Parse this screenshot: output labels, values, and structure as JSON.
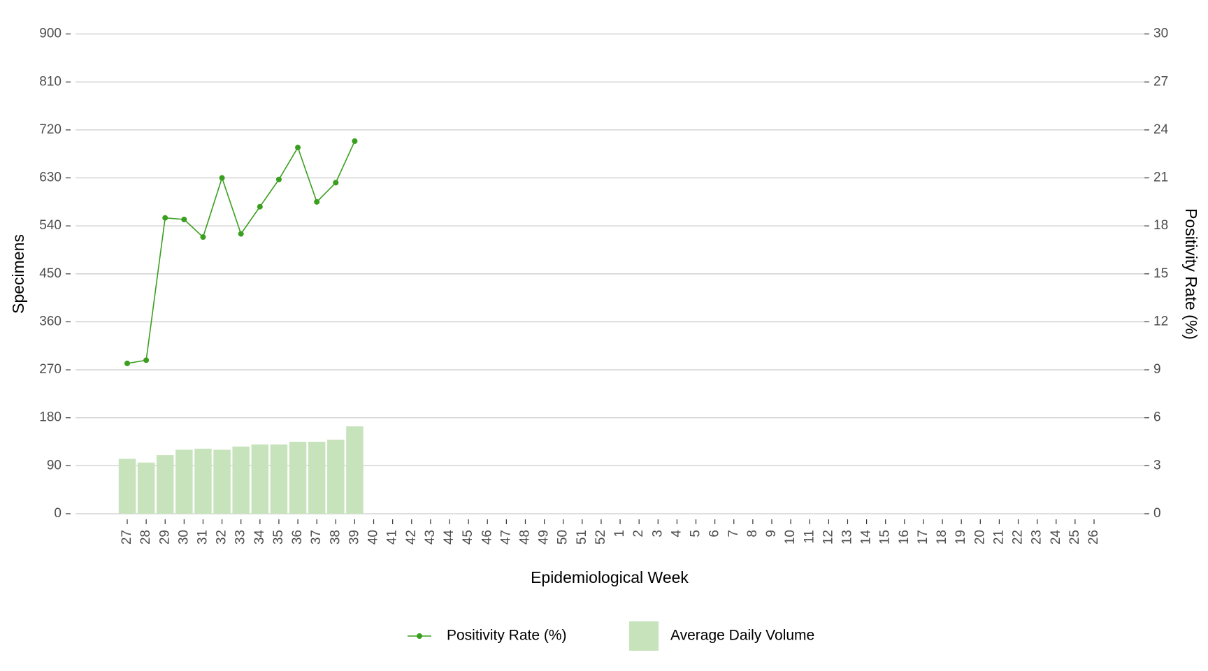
{
  "chart_data": {
    "type": "bar",
    "x_label": "Epidemiological Week",
    "y_label": "Specimens",
    "y2_label": "Positivity Rate (%)",
    "categories": [
      "27",
      "28",
      "29",
      "30",
      "31",
      "32",
      "33",
      "34",
      "35",
      "36",
      "37",
      "38",
      "39",
      "40",
      "41",
      "42",
      "43",
      "44",
      "45",
      "46",
      "47",
      "48",
      "49",
      "50",
      "51",
      "52",
      "1",
      "2",
      "3",
      "4",
      "5",
      "6",
      "7",
      "8",
      "9",
      "10",
      "11",
      "12",
      "13",
      "14",
      "15",
      "16",
      "17",
      "18",
      "19",
      "20",
      "21",
      "22",
      "23",
      "24",
      "25",
      "26"
    ],
    "series": [
      {
        "name": "Positivity Rate (%)",
        "type": "line",
        "axis": "y2",
        "color": "#3a9e1f",
        "values": [
          9.4,
          9.6,
          18.5,
          18.4,
          17.3,
          21.0,
          17.5,
          19.2,
          20.9,
          22.9,
          19.5,
          20.7,
          23.3,
          null,
          null,
          null,
          null,
          null,
          null,
          null,
          null,
          null,
          null,
          null,
          null,
          null,
          null,
          null,
          null,
          null,
          null,
          null,
          null,
          null,
          null,
          null,
          null,
          null,
          null,
          null,
          null,
          null,
          null,
          null,
          null,
          null,
          null,
          null,
          null,
          null,
          null,
          null
        ]
      },
      {
        "name": "Average Daily Volume",
        "type": "bar",
        "color": "#c7e3bb",
        "values": [
          103,
          96,
          110,
          120,
          122,
          120,
          126,
          130,
          130,
          135,
          135,
          139,
          164,
          null,
          null,
          null,
          null,
          null,
          null,
          null,
          null,
          null,
          null,
          null,
          null,
          null,
          null,
          null,
          null,
          null,
          null,
          null,
          null,
          null,
          null,
          null,
          null,
          null,
          null,
          null,
          null,
          null,
          null,
          null,
          null,
          null,
          null,
          null,
          null,
          null,
          null,
          null
        ]
      }
    ],
    "ylim": [
      0,
      900
    ],
    "yticks": [
      0,
      90,
      180,
      270,
      360,
      450,
      540,
      630,
      720,
      810,
      900
    ],
    "y2lim": [
      0,
      30
    ],
    "y2ticks": [
      0,
      3,
      6,
      9,
      12,
      15,
      18,
      21,
      24,
      27,
      30
    ],
    "grid": true,
    "legend": "bottom"
  }
}
